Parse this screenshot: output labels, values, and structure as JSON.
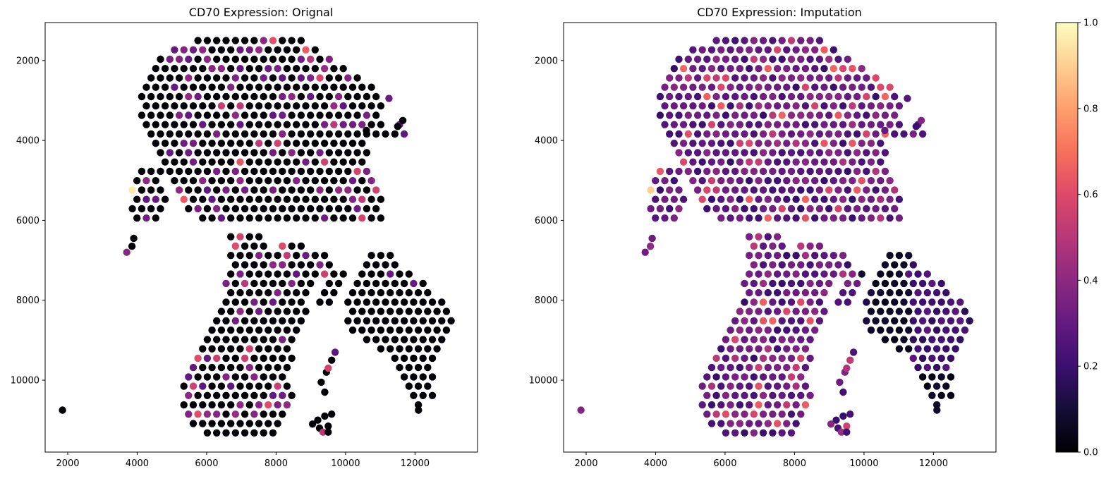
{
  "colorbar": {
    "colormap": "magma",
    "range": [
      0.0,
      1.0
    ],
    "ticks": [
      "0.0",
      "0.2",
      "0.4",
      "0.6",
      "0.8",
      "1.0"
    ],
    "gradient_stops": [
      "#000004",
      "#140e36",
      "#3b0f70",
      "#641a80",
      "#8c2981",
      "#b73779",
      "#de4968",
      "#f7705c",
      "#fe9f6d",
      "#fecf92",
      "#fcfdbf"
    ]
  },
  "chart_data": [
    {
      "type": "scatter",
      "title": "CD70 Expression: Orignal",
      "xlim": [
        1350,
        13800
      ],
      "ylim": [
        11800,
        1050
      ],
      "y_inverted": true,
      "xticks": [
        "2000",
        "4000",
        "6000",
        "8000",
        "10000",
        "12000"
      ],
      "yticks": [
        "2000",
        "4000",
        "6000",
        "8000",
        "10000"
      ],
      "marker_color_scale": "magma",
      "spot_spacing": 270,
      "seed": 17,
      "color_profile": "original",
      "x_range_approx": [
        1850,
        13200
      ],
      "y_range_approx": [
        1500,
        11300
      ],
      "notes_value_range": [
        0,
        1
      ]
    },
    {
      "type": "scatter",
      "title": "CD70 Expression: Imputation",
      "xlim": [
        1350,
        13800
      ],
      "ylim": [
        11800,
        1050
      ],
      "y_inverted": true,
      "xticks": [
        "2000",
        "4000",
        "6000",
        "8000",
        "10000",
        "12000"
      ],
      "yticks": [
        "2000",
        "4000",
        "6000",
        "8000",
        "10000"
      ],
      "marker_color_scale": "magma",
      "spot_spacing": 270,
      "seed": 17,
      "color_profile": "imputation",
      "x_range_approx": [
        1850,
        13200
      ],
      "y_range_approx": [
        1500,
        11300
      ],
      "notes_value_range": [
        0,
        1
      ]
    }
  ]
}
